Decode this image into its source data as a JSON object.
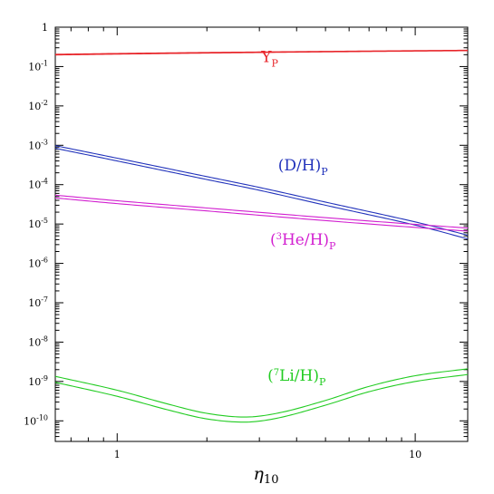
{
  "chart_data": {
    "type": "line",
    "title": "",
    "xlabel": "η10",
    "ylabel": "",
    "xscale": "log",
    "yscale": "log",
    "xlim": [
      0.62,
      15
    ],
    "ylim": [
      3e-11,
      1
    ],
    "grid": false,
    "x_ticks": [
      {
        "value": 1,
        "label": "1"
      },
      {
        "value": 10,
        "label": "10"
      }
    ],
    "y_ticks": [
      {
        "value": 1,
        "base": "1",
        "exp": ""
      },
      {
        "value": 0.1,
        "base": "10",
        "exp": "-1"
      },
      {
        "value": 0.01,
        "base": "10",
        "exp": "-2"
      },
      {
        "value": 0.001,
        "base": "10",
        "exp": "-3"
      },
      {
        "value": 0.0001,
        "base": "10",
        "exp": "-4"
      },
      {
        "value": 1e-05,
        "base": "10",
        "exp": "-5"
      },
      {
        "value": 1e-06,
        "base": "10",
        "exp": "-6"
      },
      {
        "value": 1e-07,
        "base": "10",
        "exp": "-7"
      },
      {
        "value": 1e-08,
        "base": "10",
        "exp": "-8"
      },
      {
        "value": 1e-09,
        "base": "10",
        "exp": "-9"
      },
      {
        "value": 1e-10,
        "base": "10",
        "exp": "-10"
      }
    ],
    "series": [
      {
        "key": "Yp_upper",
        "color": "#e8262b",
        "x": [
          0.62,
          1,
          2,
          5,
          10,
          15
        ],
        "y": [
          0.205,
          0.215,
          0.228,
          0.243,
          0.254,
          0.26
        ]
      },
      {
        "key": "Yp_lower",
        "color": "#e8262b",
        "x": [
          0.62,
          1,
          2,
          5,
          10,
          15
        ],
        "y": [
          0.197,
          0.207,
          0.22,
          0.236,
          0.247,
          0.253
        ]
      },
      {
        "key": "DH_upper",
        "color": "#2233bb",
        "x": [
          0.62,
          1,
          2,
          3,
          5,
          10,
          15
        ],
        "y": [
          0.00098,
          0.00047,
          0.00016,
          8.5e-05,
          3.6e-05,
          1.13e-05,
          5.2e-06
        ]
      },
      {
        "key": "DH_lower",
        "color": "#2233bb",
        "x": [
          0.62,
          1,
          2,
          3,
          5,
          10,
          15
        ],
        "y": [
          0.00084,
          0.0004,
          0.000135,
          7.2e-05,
          3e-05,
          9.4e-06,
          4.2e-06
        ]
      },
      {
        "key": "He3H_upper",
        "color": "#d21fd0",
        "x": [
          0.62,
          1,
          2,
          5,
          10,
          15
        ],
        "y": [
          5.4e-05,
          3.9e-05,
          2.55e-05,
          1.45e-05,
          9.8e-06,
          7.9e-06
        ]
      },
      {
        "key": "He3H_lower",
        "color": "#d21fd0",
        "x": [
          0.62,
          1,
          2,
          5,
          10,
          15
        ],
        "y": [
          4.6e-05,
          3.3e-05,
          2.15e-05,
          1.22e-05,
          8.2e-06,
          6.6e-06
        ]
      },
      {
        "key": "Li7H_upper",
        "color": "#22cc22",
        "x": [
          0.62,
          1,
          1.5,
          2,
          2.7,
          3.5,
          5,
          7,
          10,
          15
        ],
        "y": [
          1.35e-09,
          6e-10,
          2.6e-10,
          1.55e-10,
          1.25e-10,
          1.6e-10,
          3.3e-10,
          7.5e-10,
          1.4e-09,
          2.1e-09
        ]
      },
      {
        "key": "Li7H_lower",
        "color": "#22cc22",
        "x": [
          0.62,
          1,
          1.5,
          2,
          2.7,
          3.5,
          5,
          7,
          10,
          15
        ],
        "y": [
          9.5e-10,
          4.2e-10,
          1.85e-10,
          1.12e-10,
          9.3e-11,
          1.2e-10,
          2.5e-10,
          5.5e-10,
          1e-09,
          1.5e-09
        ]
      }
    ],
    "annotations": [
      {
        "key": "Yp",
        "main": "Y",
        "sub": "P",
        "color": "#e8262b",
        "x": 3.25,
        "y": 0.13
      },
      {
        "key": "DH",
        "pre": "(D/H)",
        "sub": "P",
        "color": "#2233bb",
        "x": 4.2,
        "y": 0.00023
      },
      {
        "key": "He3H",
        "pre": "(",
        "sup": "3",
        "post": "He/H)",
        "sub": "P",
        "color": "#d21fd0",
        "x": 4.2,
        "y": 3e-06
      },
      {
        "key": "Li7H",
        "pre": "(",
        "sup": "7",
        "post": "Li/H)",
        "sub": "P",
        "color": "#22cc22",
        "x": 4.0,
        "y": 1.05e-09
      }
    ]
  }
}
